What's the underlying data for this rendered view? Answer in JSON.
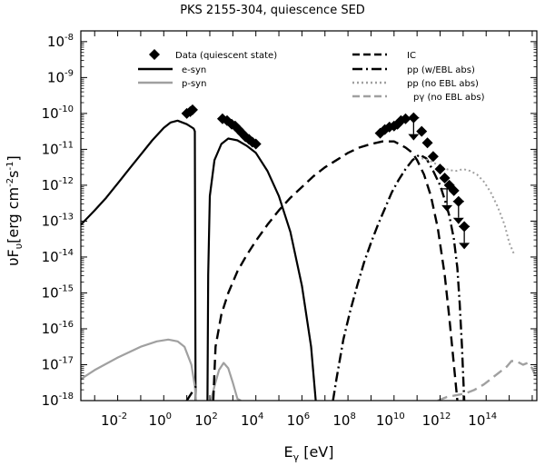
{
  "chart_data": {
    "type": "line",
    "title": "PKS 2155-304, quiescence SED",
    "xlabel": {
      "base": "E",
      "sub": "γ",
      "unit": " [eV]"
    },
    "ylabel": {
      "prefix": "υF",
      "sub": "υ",
      "text1": "[erg cm",
      "sup1": "-2",
      "text2": "s",
      "sup2": "-1",
      "text3": "]"
    },
    "x_scale": "log10",
    "y_scale": "log10",
    "xlim_log": [
      -3.6,
      16.2
    ],
    "ylim_log": [
      -18,
      -7.7
    ],
    "x_ticks": [
      {
        "log": -2,
        "base": "10",
        "exp": "-2"
      },
      {
        "log": 0,
        "base": "10",
        "exp": "0"
      },
      {
        "log": 2,
        "base": "10",
        "exp": "2"
      },
      {
        "log": 4,
        "base": "10",
        "exp": "4"
      },
      {
        "log": 6,
        "base": "10",
        "exp": "6"
      },
      {
        "log": 8,
        "base": "10",
        "exp": "8"
      },
      {
        "log": 10,
        "base": "10",
        "exp": "10"
      },
      {
        "log": 12,
        "base": "10",
        "exp": "12"
      },
      {
        "log": 14,
        "base": "10",
        "exp": "14"
      }
    ],
    "y_ticks": [
      {
        "log": -8,
        "base": "10",
        "exp": "-8"
      },
      {
        "log": -9,
        "base": "10",
        "exp": "-9"
      },
      {
        "log": -10,
        "base": "10",
        "exp": "-10"
      },
      {
        "log": -11,
        "base": "10",
        "exp": "-11"
      },
      {
        "log": -12,
        "base": "10",
        "exp": "-12"
      },
      {
        "log": -13,
        "base": "10",
        "exp": "-13"
      },
      {
        "log": -14,
        "base": "10",
        "exp": "-14"
      },
      {
        "log": -15,
        "base": "10",
        "exp": "-15"
      },
      {
        "log": -16,
        "base": "10",
        "exp": "-16"
      },
      {
        "log": -17,
        "base": "10",
        "exp": "-17"
      },
      {
        "log": -18,
        "base": "10",
        "exp": "-18"
      }
    ],
    "legend": [
      {
        "label": "Data (quiescent state)",
        "style": "marker",
        "color": "#000000"
      },
      {
        "label": "e-syn",
        "style": "solid",
        "color": "#000000"
      },
      {
        "label": "p-syn",
        "style": "solid",
        "color": "#a0a0a0"
      },
      {
        "label": "IC",
        "style": "dashed",
        "color": "#000000"
      },
      {
        "label": "pp  (w/EBL abs)",
        "style": "dashdot",
        "color": "#000000"
      },
      {
        "label": "pp  (no EBL abs)",
        "style": "dotted",
        "color": "#a0a0a0"
      },
      {
        "label": "pγ  (no EBL abs)",
        "style": "dashed",
        "color": "#a0a0a0"
      }
    ],
    "series": [
      {
        "name": "e-syn",
        "style": "solid",
        "color": "#000000",
        "width": 2.2,
        "x": [
          -3.6,
          -3.0,
          -2.5,
          -2.0,
          -1.5,
          -1.0,
          -0.5,
          0.0,
          0.3,
          0.6,
          1.0,
          1.3,
          1.35,
          1.38
        ],
        "y": [
          -13.1,
          -12.7,
          -12.35,
          -11.95,
          -11.55,
          -11.15,
          -10.75,
          -10.4,
          -10.25,
          -10.2,
          -10.3,
          -10.42,
          -10.5,
          -18.0
        ]
      },
      {
        "name": "e-syn",
        "style": "solid",
        "color": "#000000",
        "width": 2.2,
        "x": [
          1.9,
          1.93,
          2.0,
          2.2,
          2.5,
          2.8,
          3.2,
          3.6,
          4.0,
          4.5,
          5.0,
          5.5,
          6.0,
          6.4,
          6.6
        ],
        "y": [
          -18.0,
          -14.5,
          -12.3,
          -11.3,
          -10.85,
          -10.7,
          -10.75,
          -10.9,
          -11.1,
          -11.6,
          -12.3,
          -13.3,
          -14.8,
          -16.5,
          -18.0
        ]
      },
      {
        "name": "p-syn",
        "style": "solid",
        "color": "#a0a0a0",
        "width": 2.2,
        "x": [
          -3.6,
          -3.0,
          -2.0,
          -1.0,
          -0.3,
          0.2,
          0.6,
          0.9,
          1.2,
          1.35,
          1.4
        ],
        "y": [
          -17.4,
          -17.15,
          -16.8,
          -16.5,
          -16.35,
          -16.3,
          -16.35,
          -16.5,
          -17.0,
          -17.6,
          -18.0
        ]
      },
      {
        "name": "p-syn",
        "style": "solid",
        "color": "#a0a0a0",
        "width": 2.2,
        "x": [
          2.05,
          2.2,
          2.4,
          2.6,
          2.8,
          3.0,
          3.2,
          3.35
        ],
        "y": [
          -18.0,
          -17.6,
          -17.15,
          -16.95,
          -17.1,
          -17.5,
          -17.95,
          -18.0
        ]
      },
      {
        "name": "IC",
        "style": "dashed",
        "color": "#000000",
        "width": 2.4,
        "x": [
          1.0,
          1.4
        ],
        "y": [
          -18.0,
          -17.6
        ]
      },
      {
        "name": "IC",
        "style": "dashed",
        "color": "#000000",
        "width": 2.4,
        "x": [
          2.15,
          2.25,
          2.5,
          2.8,
          3.2,
          3.6,
          4.0,
          4.5,
          5.0,
          5.5,
          6.0,
          6.5,
          7.0,
          7.5,
          8.0,
          8.5,
          9.0,
          9.5,
          10.0,
          10.5,
          10.8,
          11.0,
          11.3,
          11.6,
          11.9,
          12.2,
          12.4,
          12.6,
          12.75
        ],
        "y": [
          -18.0,
          -16.5,
          -15.6,
          -15.0,
          -14.4,
          -13.95,
          -13.55,
          -13.1,
          -12.7,
          -12.35,
          -12.05,
          -11.75,
          -11.5,
          -11.3,
          -11.1,
          -10.95,
          -10.85,
          -10.78,
          -10.78,
          -10.95,
          -11.1,
          -11.3,
          -11.7,
          -12.3,
          -13.2,
          -14.5,
          -15.7,
          -17.0,
          -18.0
        ]
      },
      {
        "name": "pp (w/EBL abs)",
        "style": "dashdot",
        "color": "#000000",
        "width": 2.4,
        "x": [
          7.35,
          7.5,
          7.8,
          8.1,
          8.4,
          8.7,
          9.0,
          9.3,
          9.6,
          9.9,
          10.2,
          10.5,
          10.8,
          11.1,
          11.4,
          11.7,
          12.0,
          12.2,
          12.4,
          12.6,
          12.75,
          12.85,
          12.95,
          13.0,
          13.05
        ],
        "y": [
          -18.0,
          -17.4,
          -16.3,
          -15.5,
          -14.8,
          -14.15,
          -13.6,
          -13.1,
          -12.65,
          -12.2,
          -11.85,
          -11.55,
          -11.3,
          -11.15,
          -11.25,
          -11.6,
          -12.0,
          -12.4,
          -12.85,
          -13.5,
          -14.3,
          -15.3,
          -16.5,
          -17.3,
          -18.0
        ]
      },
      {
        "name": "pp (no EBL abs)",
        "style": "dotted",
        "color": "#a0a0a0",
        "width": 2.0,
        "x": [
          11.2,
          11.5,
          11.8,
          12.1,
          12.4,
          12.7,
          13.0,
          13.3,
          13.6,
          13.9,
          14.2,
          14.5,
          14.8,
          15.0,
          15.2
        ],
        "y": [
          -11.25,
          -11.3,
          -11.4,
          -11.5,
          -11.58,
          -11.6,
          -11.55,
          -11.6,
          -11.7,
          -11.9,
          -12.2,
          -12.6,
          -13.1,
          -13.6,
          -13.9
        ]
      },
      {
        "name": "pγ (no EBL abs)",
        "style": "dashed",
        "color": "#a0a0a0",
        "width": 2.4,
        "x": [
          11.9,
          12.3,
          12.7,
          13.1,
          13.5,
          13.9,
          14.3,
          14.6,
          14.9,
          15.1,
          15.3,
          15.45,
          15.6,
          15.8,
          16.0,
          16.2
        ],
        "y": [
          -18.0,
          -17.9,
          -17.85,
          -17.8,
          -17.7,
          -17.55,
          -17.35,
          -17.2,
          -17.05,
          -16.9,
          -16.9,
          -16.95,
          -17.0,
          -16.95,
          -17.1,
          -17.4
        ]
      }
    ],
    "data_points": {
      "x": [
        1.0,
        1.15,
        1.25,
        2.55,
        2.75,
        2.95,
        3.1,
        3.25,
        3.4,
        3.55,
        3.7,
        3.85,
        4.0,
        9.4,
        9.6,
        9.8,
        10.0,
        10.15,
        10.3,
        10.5,
        10.85,
        11.2,
        11.45,
        11.7,
        12.0,
        12.2,
        12.4,
        12.6,
        12.8,
        13.05
      ],
      "y": [
        -10.0,
        -9.95,
        -9.9,
        -10.15,
        -10.2,
        -10.3,
        -10.35,
        -10.45,
        -10.55,
        -10.65,
        -10.72,
        -10.8,
        -10.85,
        -10.55,
        -10.45,
        -10.38,
        -10.35,
        -10.3,
        -10.2,
        -10.15,
        -10.12,
        -10.5,
        -10.82,
        -11.2,
        -11.55,
        -11.8,
        -12.0,
        -12.15,
        -12.45,
        -13.15
      ],
      "upper_limits": [
        {
          "x": 10.85,
          "y": -10.12
        },
        {
          "x": 12.3,
          "y": -12.1
        },
        {
          "x": 12.8,
          "y": -12.45
        },
        {
          "x": 13.05,
          "y": -13.15
        }
      ]
    }
  }
}
